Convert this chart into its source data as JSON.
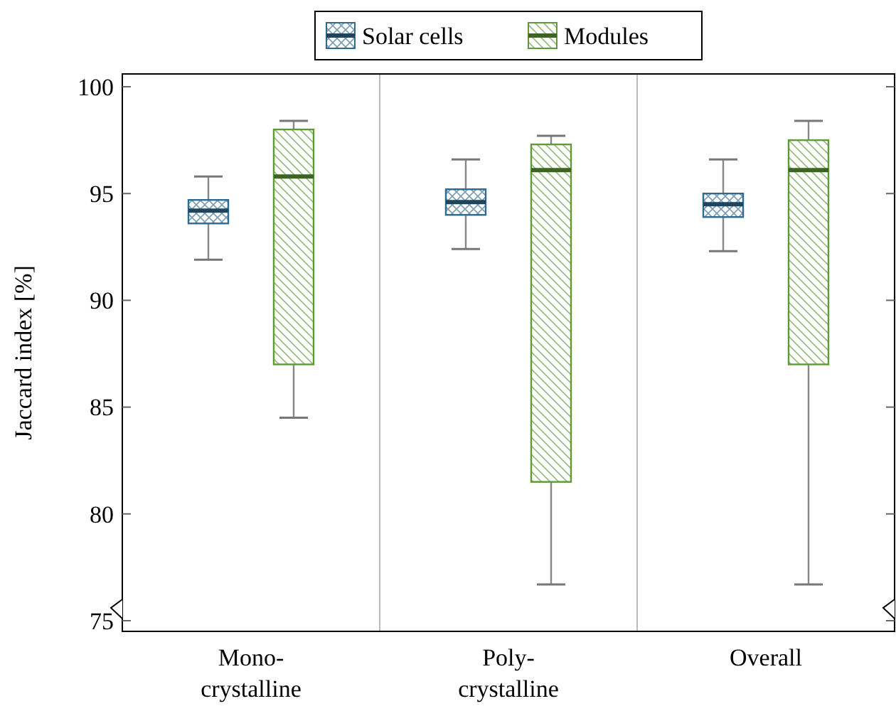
{
  "chart_data": {
    "type": "box",
    "ylabel": "Jaccard index [%]",
    "categories": [
      "Mono-\ncrystalline",
      "Poly-\ncrystalline",
      "Overall"
    ],
    "ylim": [
      74.5,
      100.6
    ],
    "yticks": [
      75,
      80,
      85,
      90,
      95,
      100
    ],
    "legend": "top",
    "grid": false,
    "series": [
      {
        "name": "Solar cells",
        "color": "#2f6a8f",
        "boxes": [
          {
            "low": 91.9,
            "q1": 93.6,
            "median": 94.2,
            "q3": 94.7,
            "high": 95.8
          },
          {
            "low": 92.4,
            "q1": 94.0,
            "median": 94.6,
            "q3": 95.2,
            "high": 96.6
          },
          {
            "low": 92.3,
            "q1": 93.9,
            "median": 94.5,
            "q3": 95.0,
            "high": 96.6
          }
        ]
      },
      {
        "name": "Modules",
        "color": "#5e9a36",
        "boxes": [
          {
            "low": 84.5,
            "q1": 87.0,
            "median": 95.8,
            "q3": 98.0,
            "high": 98.4
          },
          {
            "low": 76.7,
            "q1": 81.5,
            "median": 96.1,
            "q3": 97.3,
            "high": 97.7
          },
          {
            "low": 76.7,
            "q1": 87.0,
            "median": 96.1,
            "q3": 97.5,
            "high": 98.4
          }
        ]
      }
    ]
  }
}
